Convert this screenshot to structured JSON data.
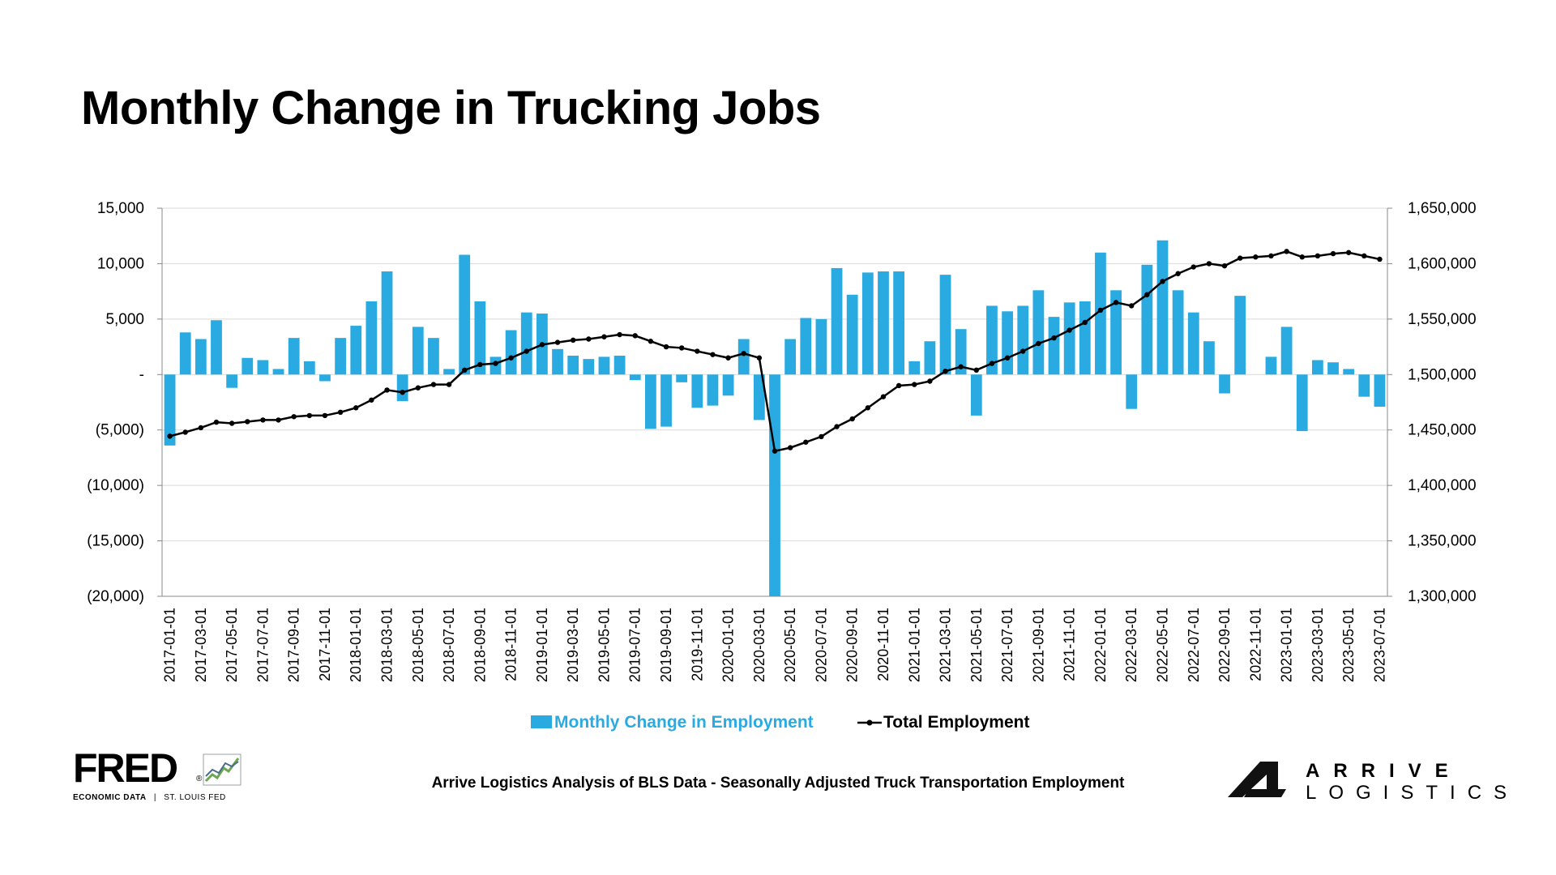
{
  "title": "Monthly Change in Trucking Jobs",
  "footer": {
    "caption": "Arrive Logistics Analysis of BLS Data - Seasonally Adjusted Truck Transportation Employment",
    "fred_wordmark": "FRED",
    "fred_registered": "®",
    "fred_subtitle_bold": "ECONOMIC DATA",
    "fred_subtitle_sep": "|",
    "fred_subtitle_rest": "ST. LOUIS FED",
    "arrive_line1": "ARRIVE",
    "arrive_line2": "LOGISTICS"
  },
  "colors": {
    "bar": "#29abe2",
    "line": "#000000",
    "grid": "#d9d9d9"
  },
  "chart_data": {
    "type": "bar",
    "title": "Monthly Change in Trucking Jobs",
    "x": [
      "2017-01-01",
      "2017-02-01",
      "2017-03-01",
      "2017-04-01",
      "2017-05-01",
      "2017-06-01",
      "2017-07-01",
      "2017-08-01",
      "2017-09-01",
      "2017-10-01",
      "2017-11-01",
      "2017-12-01",
      "2018-01-01",
      "2018-02-01",
      "2018-03-01",
      "2018-04-01",
      "2018-05-01",
      "2018-06-01",
      "2018-07-01",
      "2018-08-01",
      "2018-09-01",
      "2018-10-01",
      "2018-11-01",
      "2018-12-01",
      "2019-01-01",
      "2019-02-01",
      "2019-03-01",
      "2019-04-01",
      "2019-05-01",
      "2019-06-01",
      "2019-07-01",
      "2019-08-01",
      "2019-09-01",
      "2019-10-01",
      "2019-11-01",
      "2019-12-01",
      "2020-01-01",
      "2020-02-01",
      "2020-03-01",
      "2020-04-01",
      "2020-05-01",
      "2020-06-01",
      "2020-07-01",
      "2020-08-01",
      "2020-09-01",
      "2020-10-01",
      "2020-11-01",
      "2020-12-01",
      "2021-01-01",
      "2021-02-01",
      "2021-03-01",
      "2021-04-01",
      "2021-05-01",
      "2021-06-01",
      "2021-07-01",
      "2021-08-01",
      "2021-09-01",
      "2021-10-01",
      "2021-11-01",
      "2021-12-01",
      "2022-01-01",
      "2022-02-01",
      "2022-03-01",
      "2022-04-01",
      "2022-05-01",
      "2022-06-01",
      "2022-07-01",
      "2022-08-01",
      "2022-09-01",
      "2022-10-01",
      "2022-11-01",
      "2022-12-01",
      "2023-01-01",
      "2023-02-01",
      "2023-03-01",
      "2023-04-01",
      "2023-05-01",
      "2023-06-01",
      "2023-07-01"
    ],
    "x_tick_labels": [
      "2017-01-01",
      "2017-03-01",
      "2017-05-01",
      "2017-07-01",
      "2017-09-01",
      "2017-11-01",
      "2018-01-01",
      "2018-03-01",
      "2018-05-01",
      "2018-07-01",
      "2018-09-01",
      "2018-11-01",
      "2019-01-01",
      "2019-03-01",
      "2019-05-01",
      "2019-07-01",
      "2019-09-01",
      "2019-11-01",
      "2020-01-01",
      "2020-03-01",
      "2020-05-01",
      "2020-07-01",
      "2020-09-01",
      "2020-11-01",
      "2021-01-01",
      "2021-03-01",
      "2021-05-01",
      "2021-07-01",
      "2021-09-01",
      "2021-11-01",
      "2022-01-01",
      "2022-03-01",
      "2022-05-01",
      "2022-07-01",
      "2022-09-01",
      "2022-11-01",
      "2023-01-01",
      "2023-03-01",
      "2023-05-01",
      "2023-07-01"
    ],
    "series": [
      {
        "name": "Monthly Change in Employment",
        "type": "bar",
        "axis": "left",
        "values": [
          -6400,
          3800,
          3200,
          4900,
          -1200,
          1500,
          1300,
          500,
          3300,
          1200,
          -600,
          3300,
          4400,
          6600,
          9300,
          -2400,
          4300,
          3300,
          500,
          10800,
          6600,
          1600,
          4000,
          5600,
          5500,
          2300,
          1700,
          1400,
          1600,
          1700,
          -500,
          -4900,
          -4700,
          -700,
          -3000,
          -2800,
          -1900,
          3200,
          -4100,
          -20000,
          3200,
          5100,
          5000,
          9600,
          7200,
          9200,
          9300,
          9300,
          1200,
          3000,
          9000,
          4100,
          -3700,
          6200,
          5700,
          6200,
          7600,
          5200,
          6500,
          6600,
          11000,
          7600,
          -3100,
          9900,
          12100,
          7600,
          5600,
          3000,
          -1700,
          7100,
          0,
          1600,
          4300,
          -5100,
          1300,
          1100,
          500,
          -2000,
          -2900
        ]
      },
      {
        "name": "Total Employment",
        "type": "line",
        "axis": "right",
        "values": [
          1444400,
          1448000,
          1452000,
          1457000,
          1456000,
          1457500,
          1459000,
          1459000,
          1462000,
          1463000,
          1463000,
          1466000,
          1470000,
          1477000,
          1486000,
          1484000,
          1488000,
          1491000,
          1491000,
          1504000,
          1509000,
          1510000,
          1515000,
          1521000,
          1527000,
          1529000,
          1531000,
          1532000,
          1534000,
          1536000,
          1535000,
          1530000,
          1525000,
          1524000,
          1521000,
          1518000,
          1515000,
          1519000,
          1515000,
          1431000,
          1434000,
          1439000,
          1444000,
          1453000,
          1460000,
          1470000,
          1480000,
          1490000,
          1491000,
          1494000,
          1503000,
          1507000,
          1504000,
          1510000,
          1515000,
          1521000,
          1528000,
          1533000,
          1540000,
          1547000,
          1558000,
          1565000,
          1562000,
          1572000,
          1584000,
          1591000,
          1597000,
          1600000,
          1598000,
          1605000,
          1606000,
          1607000,
          1611000,
          1606000,
          1607000,
          1609000,
          1610000,
          1607000,
          1604000
        ]
      }
    ],
    "y_left": {
      "min": -20000,
      "max": 15000,
      "ticks": [
        "15,000",
        "10,000",
        "5,000",
        "-",
        "(5,000)",
        "(10,000)",
        "(15,000)",
        "(20,000)"
      ]
    },
    "y_right": {
      "min": 1300000,
      "max": 1650000,
      "ticks": [
        "1,650,000",
        "1,600,000",
        "1,550,000",
        "1,500,000",
        "1,450,000",
        "1,400,000",
        "1,350,000",
        "1,300,000"
      ]
    },
    "legend": {
      "position": "bottom",
      "entries": [
        "Monthly Change in Employment",
        "Total Employment"
      ]
    },
    "grid": true
  }
}
